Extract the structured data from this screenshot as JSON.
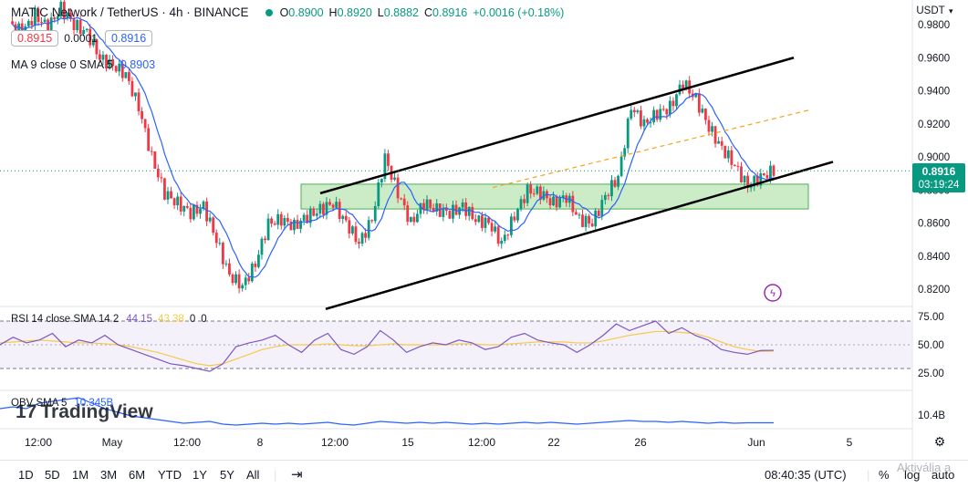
{
  "header": {
    "symbol_title": "MATIC Network / TetherUS · 4h · BINANCE",
    "ohlc": {
      "open_label": "O",
      "open": "0.8900",
      "high_label": "H",
      "high": "0.8920",
      "low_label": "L",
      "low": "0.8882",
      "close_label": "C",
      "close": "0.8916",
      "change": "+0.0016 (+0.18%)"
    },
    "bid": "0.8915",
    "spread": "0.0001",
    "ask": "0.8916",
    "ma_label": "MA 9 close 0 SMA 5",
    "ma_value": "0.8903"
  },
  "currency": "USDT",
  "price_axis": {
    "ticks": [
      "0.9800",
      "0.9600",
      "0.9400",
      "0.9200",
      "0.9000",
      "0.8800",
      "0.8600",
      "0.8400",
      "0.8200"
    ],
    "last_price": "0.8916",
    "countdown": "03:19:24"
  },
  "rsi": {
    "label": "RSI 14 close SMA 14 2",
    "rsi_value": "44.15",
    "sma_value": "43.38",
    "extra1": "0",
    "extra2": "0",
    "ticks": [
      "75.00",
      "50.00",
      "25.00"
    ]
  },
  "obv": {
    "label": "OBV SMA 5",
    "value": "10.345B",
    "tick": "10.4B"
  },
  "watermark": "TradingView",
  "time_axis": {
    "ticks": [
      "12:00",
      "May",
      "12:00",
      "8",
      "12:00",
      "15",
      "12:00",
      "22",
      "26",
      "Jun",
      "5"
    ]
  },
  "bottom": {
    "timeframes": [
      "1D",
      "5D",
      "1M",
      "3M",
      "6M",
      "YTD",
      "1Y",
      "5Y",
      "All"
    ],
    "clock": "08:40:35 (UTC)",
    "percent": "%",
    "log": "log",
    "auto": "auto",
    "windows_watermark": "Aktiválja a"
  },
  "colors": {
    "up": "#089981",
    "down": "#f23645",
    "ma": "#2962ff",
    "rsi": "#7e57c2",
    "rsi_sma": "#f7c948",
    "zone": "#b7e4b0",
    "channel": "#000000",
    "midline": "#f7a21b",
    "obv": "#2962ff"
  },
  "chart_data": {
    "type": "candlestick",
    "interval": "4h",
    "ylim": [
      0.81,
      0.99
    ],
    "x_ticks": [
      "12:00",
      "May",
      "12:00",
      "8",
      "12:00",
      "15",
      "12:00",
      "22",
      "26",
      "Jun",
      "5"
    ],
    "close_path": [
      0.982,
      0.975,
      0.986,
      0.978,
      0.99,
      0.98,
      0.975,
      0.96,
      0.955,
      0.95,
      0.93,
      0.9,
      0.878,
      0.872,
      0.866,
      0.87,
      0.85,
      0.828,
      0.822,
      0.835,
      0.86,
      0.862,
      0.858,
      0.864,
      0.868,
      0.872,
      0.86,
      0.848,
      0.862,
      0.9,
      0.878,
      0.86,
      0.872,
      0.868,
      0.866,
      0.87,
      0.862,
      0.86,
      0.848,
      0.864,
      0.88,
      0.878,
      0.872,
      0.876,
      0.862,
      0.86,
      0.876,
      0.888,
      0.93,
      0.92,
      0.926,
      0.93,
      0.945,
      0.935,
      0.918,
      0.905,
      0.895,
      0.882,
      0.888,
      0.8916
    ],
    "support_resistance_zone": [
      0.8685,
      0.8835
    ],
    "channel_upper": [
      0.878,
      0.96
    ],
    "channel_lower": [
      0.808,
      0.897
    ],
    "rsi_values": [
      50,
      58,
      52,
      55,
      62,
      48,
      55,
      52,
      60,
      50,
      45,
      40,
      35,
      30,
      28,
      25,
      22,
      30,
      48,
      52,
      55,
      60,
      50,
      42,
      55,
      62,
      45,
      40,
      48,
      65,
      55,
      42,
      48,
      52,
      50,
      55,
      52,
      45,
      48,
      58,
      62,
      55,
      52,
      50,
      42,
      50,
      60,
      72,
      65,
      70,
      75,
      62,
      68,
      60,
      55,
      45,
      42,
      40,
      44,
      44.15
    ],
    "rsi_sma_values": [
      52,
      53,
      54,
      55,
      54,
      53,
      52,
      52,
      51,
      50,
      48,
      45,
      42,
      38,
      34,
      30,
      28,
      30,
      35,
      40,
      45,
      48,
      50,
      50,
      50,
      51,
      50,
      49,
      49,
      50,
      51,
      50,
      50,
      50,
      50,
      51,
      51,
      50,
      50,
      51,
      52,
      53,
      53,
      53,
      52,
      52,
      54,
      57,
      60,
      62,
      64,
      64,
      63,
      62,
      58,
      53,
      48,
      45,
      43,
      43.38
    ],
    "obv_values": [
      10.5,
      10.52,
      10.5,
      10.56,
      10.58,
      10.6,
      10.62,
      10.56,
      10.5,
      10.46,
      10.42,
      10.4,
      10.38,
      10.36,
      10.34,
      10.35,
      10.36,
      10.33,
      10.32,
      10.33,
      10.34,
      10.33,
      10.34,
      10.33,
      10.34,
      10.35,
      10.33,
      10.32,
      10.34,
      10.36,
      10.35,
      10.34,
      10.35,
      10.34,
      10.35,
      10.34,
      10.33,
      10.34,
      10.33,
      10.34,
      10.35,
      10.34,
      10.35,
      10.34,
      10.33,
      10.34,
      10.35,
      10.36,
      10.37,
      10.36,
      10.36,
      10.35,
      10.36,
      10.35,
      10.34,
      10.35,
      10.34,
      10.345,
      10.345,
      10.345
    ],
    "ohlc": {
      "open": 0.89,
      "high": 0.892,
      "low": 0.8882,
      "close": 0.8916
    }
  }
}
